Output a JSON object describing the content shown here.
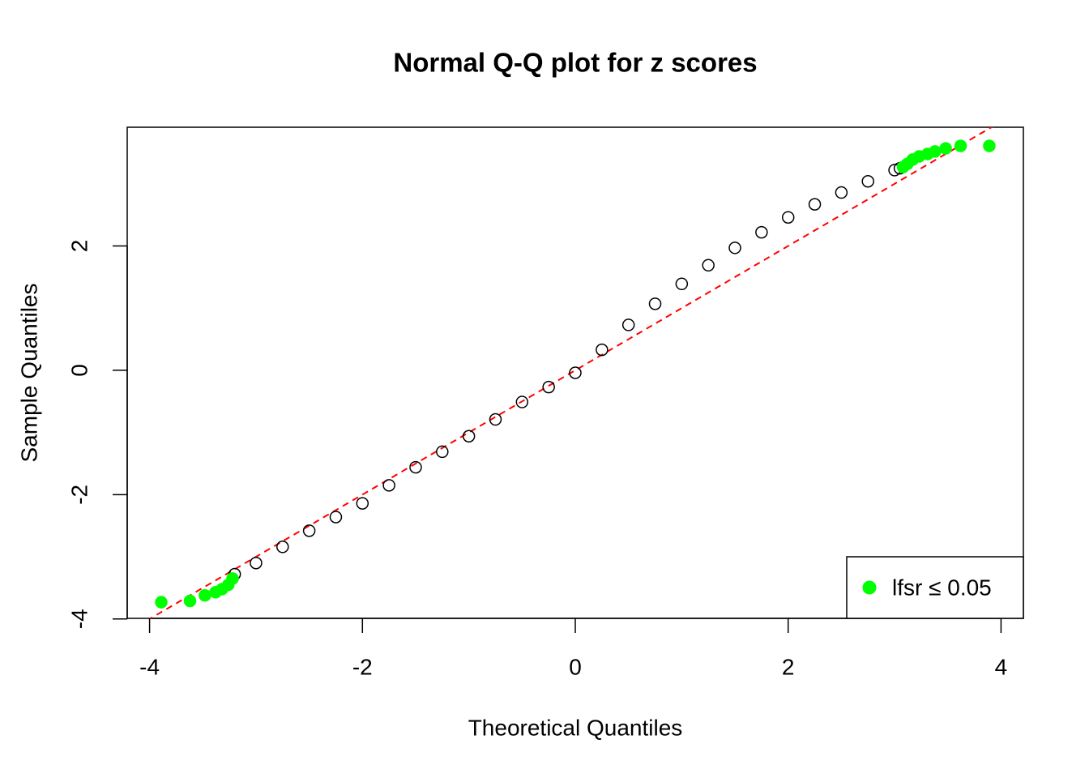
{
  "chart_data": {
    "type": "scatter",
    "title": "Normal Q-Q plot for z scores",
    "x_label": "Theoretical Quantiles",
    "y_label": "Sample Quantiles",
    "xlim": [
      -4.21,
      4.21
    ],
    "ylim": [
      -3.99,
      3.91
    ],
    "xticks": [
      -4,
      -2,
      0,
      2,
      4
    ],
    "yticks": [
      -4,
      -2,
      0,
      2
    ],
    "legend": "bottomright",
    "reference_line": {
      "slope": 1.0,
      "intercept": 0.0,
      "color": "#ff0000",
      "dashed": true
    },
    "series": [
      {
        "color": "#000000",
        "filled": false,
        "x": [
          -3.2,
          -3.0,
          -2.75,
          -2.5,
          -2.25,
          -2.0,
          -1.75,
          -1.5,
          -1.25,
          -1.0,
          -0.75,
          -0.5,
          -0.25,
          0,
          0.25,
          0.5,
          0.75,
          1.0,
          1.25,
          1.5,
          1.75,
          2.0,
          2.25,
          2.5,
          2.75,
          3.0,
          3.05
        ],
        "values": [
          -3.28,
          -3.1,
          -2.84,
          -2.58,
          -2.36,
          -2.14,
          -1.85,
          -1.56,
          -1.31,
          -1.06,
          -0.79,
          -0.51,
          -0.27,
          -0.04,
          0.33,
          0.73,
          1.07,
          1.39,
          1.69,
          1.97,
          2.22,
          2.46,
          2.67,
          2.86,
          3.04,
          3.22,
          3.25
        ]
      },
      {
        "name": "lfsr  ≤ 0.05",
        "color": "#00ff00",
        "filled": true,
        "x": [
          -3.89,
          -3.62,
          -3.48,
          -3.38,
          -3.32,
          -3.26,
          -3.22,
          3.08,
          3.12,
          3.17,
          3.23,
          3.31,
          3.38,
          3.48,
          3.62,
          3.89
        ],
        "values": [
          -3.73,
          -3.71,
          -3.62,
          -3.57,
          -3.52,
          -3.45,
          -3.35,
          3.27,
          3.32,
          3.39,
          3.44,
          3.48,
          3.52,
          3.57,
          3.61,
          3.61
        ]
      }
    ]
  }
}
